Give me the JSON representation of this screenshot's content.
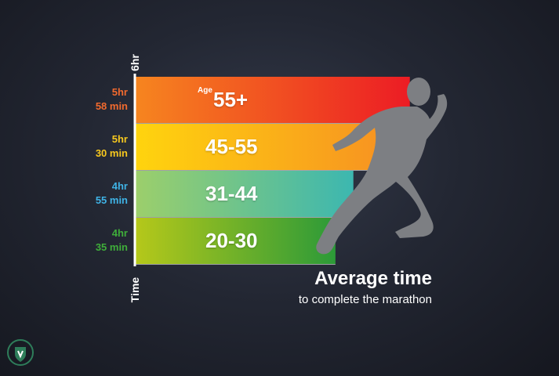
{
  "chart_data": {
    "type": "bar",
    "orientation": "horizontal",
    "title": "Average time",
    "subtitle": "to complete the marathon",
    "age_word": "Age",
    "axis_top_label": "6hr",
    "axis_bottom_label": "Time",
    "categories": [
      "55+",
      "45-55",
      "31-44",
      "20-30"
    ],
    "values_minutes": [
      358,
      330,
      295,
      275
    ],
    "time_labels": [
      [
        "5hr",
        "58 min"
      ],
      [
        "5hr",
        "30 min"
      ],
      [
        "4hr",
        "55 min"
      ],
      [
        "4hr",
        "35 min"
      ]
    ],
    "label_colors": [
      "#f26a2e",
      "#f7c81e",
      "#3fb3e6",
      "#3fae3a"
    ],
    "bar_gradients": [
      [
        "#f6851f",
        "#ec1c24"
      ],
      [
        "#ffd40e",
        "#f79321"
      ],
      [
        "#9ccf6b",
        "#3cb7b0"
      ],
      [
        "#b5c81a",
        "#2c9a38"
      ]
    ],
    "grid": false,
    "legend": "none"
  }
}
